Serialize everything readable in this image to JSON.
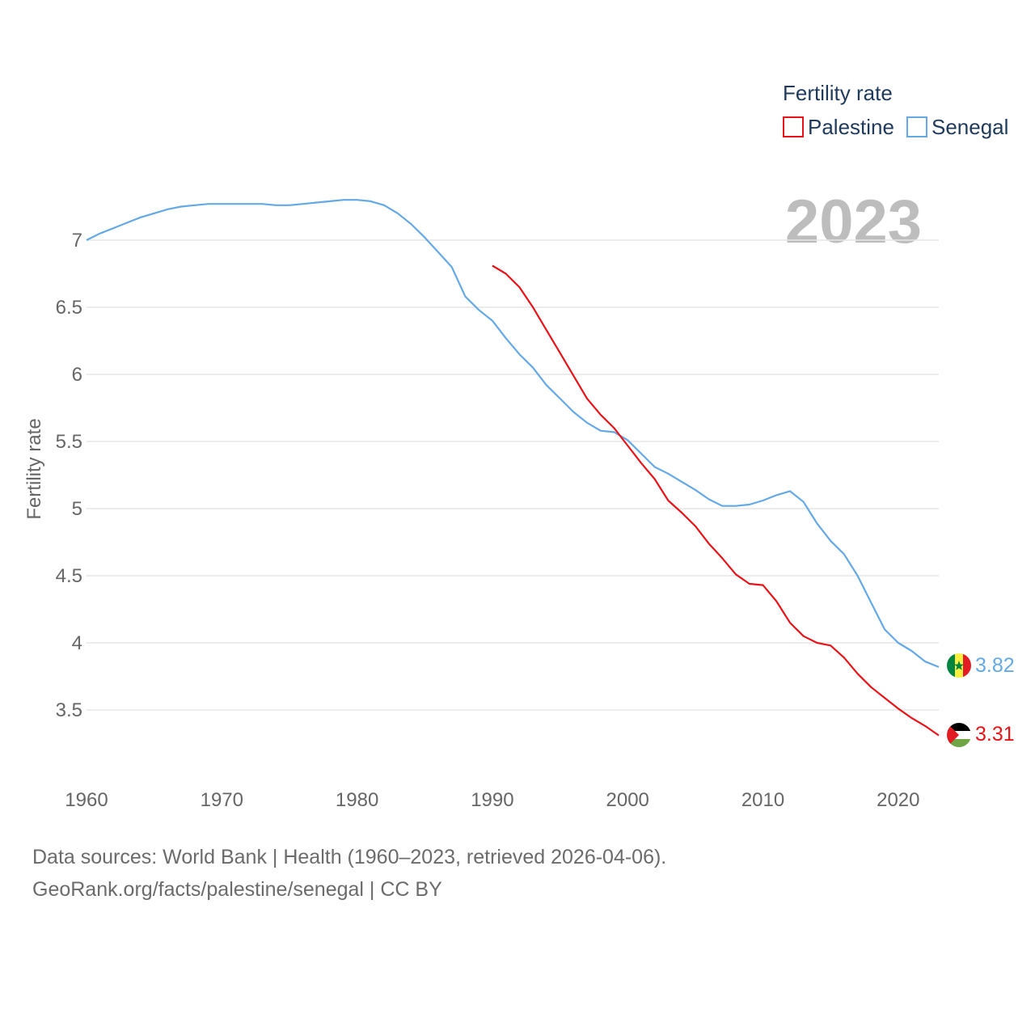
{
  "chart_data": {
    "type": "line",
    "legend_title": "Fertility rate",
    "ylabel": "Fertility rate",
    "xlabel": "",
    "highlight_year": "2023",
    "xlim": [
      1960,
      2023
    ],
    "ylim": [
      3.0,
      7.5
    ],
    "x_ticks": [
      1960,
      1970,
      1980,
      1990,
      2000,
      2010,
      2020
    ],
    "y_ticks": [
      3.5,
      4,
      4.5,
      5,
      5.5,
      6,
      6.5,
      7
    ],
    "grid": true,
    "legend_position": "top-right",
    "series": [
      {
        "name": "Palestine",
        "color": "#e8141a",
        "end_label": "3.31",
        "flag_icon": "palestine-flag-icon",
        "x": [
          1990,
          1991,
          1992,
          1993,
          1994,
          1995,
          1996,
          1997,
          1998,
          1999,
          2000,
          2001,
          2002,
          2003,
          2004,
          2005,
          2006,
          2007,
          2008,
          2009,
          2010,
          2011,
          2012,
          2013,
          2014,
          2015,
          2016,
          2017,
          2018,
          2019,
          2020,
          2021,
          2022,
          2023
        ],
        "values": [
          6.81,
          6.75,
          6.65,
          6.5,
          6.33,
          6.16,
          5.99,
          5.82,
          5.7,
          5.6,
          5.47,
          5.34,
          5.22,
          5.06,
          4.97,
          4.87,
          4.74,
          4.63,
          4.51,
          4.44,
          4.43,
          4.31,
          4.15,
          4.05,
          4.0,
          3.98,
          3.89,
          3.77,
          3.67,
          3.59,
          3.51,
          3.44,
          3.38,
          3.31
        ]
      },
      {
        "name": "Senegal",
        "color": "#64a9e6",
        "end_label": "3.82",
        "flag_icon": "senegal-flag-icon",
        "x": [
          1960,
          1961,
          1962,
          1963,
          1964,
          1965,
          1966,
          1967,
          1968,
          1969,
          1970,
          1971,
          1972,
          1973,
          1974,
          1975,
          1976,
          1977,
          1978,
          1979,
          1980,
          1981,
          1982,
          1983,
          1984,
          1985,
          1986,
          1987,
          1988,
          1989,
          1990,
          1991,
          1992,
          1993,
          1994,
          1995,
          1996,
          1997,
          1998,
          1999,
          2000,
          2001,
          2002,
          2003,
          2004,
          2005,
          2006,
          2007,
          2008,
          2009,
          2010,
          2011,
          2012,
          2013,
          2014,
          2015,
          2016,
          2017,
          2018,
          2019,
          2020,
          2021,
          2022,
          2023
        ],
        "values": [
          7.0,
          7.05,
          7.09,
          7.13,
          7.17,
          7.2,
          7.23,
          7.25,
          7.26,
          7.27,
          7.27,
          7.27,
          7.27,
          7.27,
          7.26,
          7.26,
          7.27,
          7.28,
          7.29,
          7.3,
          7.3,
          7.29,
          7.26,
          7.2,
          7.12,
          7.02,
          6.91,
          6.8,
          6.58,
          6.48,
          6.4,
          6.27,
          6.15,
          6.05,
          5.92,
          5.82,
          5.72,
          5.64,
          5.58,
          5.57,
          5.51,
          5.41,
          5.31,
          5.26,
          5.2,
          5.14,
          5.07,
          5.02,
          5.02,
          5.03,
          5.06,
          5.1,
          5.13,
          5.05,
          4.89,
          4.76,
          4.66,
          4.5,
          4.3,
          4.1,
          4.0,
          3.94,
          3.86,
          3.82
        ]
      }
    ]
  },
  "footer": {
    "source_line": "Data sources: World Bank | Health (1960–2023, retrieved 2026-04-06).",
    "credit_line": "GeoRank.org/facts/palestine/senegal | CC BY"
  }
}
